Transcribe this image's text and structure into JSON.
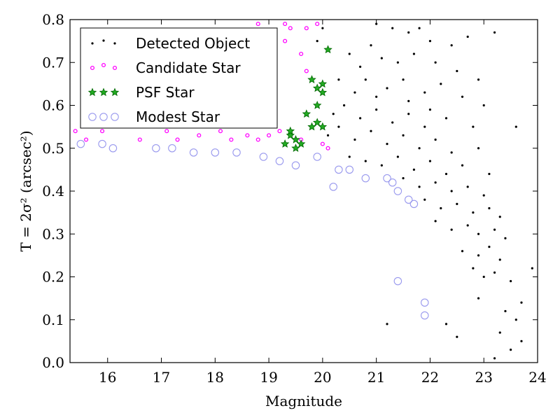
{
  "chart_data": {
    "type": "scatter",
    "xlabel": "Magnitude",
    "ylabel": "T = 2σ² (arcsec²)",
    "xlim": [
      15.3,
      24.0
    ],
    "ylim": [
      0.0,
      0.8
    ],
    "xticks": [
      16,
      17,
      18,
      19,
      20,
      21,
      22,
      23,
      24
    ],
    "yticks": [
      0.0,
      0.1,
      0.2,
      0.3,
      0.4,
      0.5,
      0.6,
      0.7,
      0.8
    ],
    "grid": false,
    "legend_position": "top-left",
    "series": [
      {
        "name": "Detected Object",
        "marker": "dot",
        "color": "#000000",
        "points": [
          [
            21.0,
            0.79
          ],
          [
            21.3,
            0.78
          ],
          [
            21.6,
            0.77
          ],
          [
            21.8,
            0.78
          ],
          [
            22.0,
            0.75
          ],
          [
            22.4,
            0.74
          ],
          [
            22.7,
            0.76
          ],
          [
            23.2,
            0.77
          ],
          [
            20.5,
            0.72
          ],
          [
            20.7,
            0.69
          ],
          [
            20.9,
            0.74
          ],
          [
            21.1,
            0.71
          ],
          [
            21.4,
            0.7
          ],
          [
            21.7,
            0.72
          ],
          [
            22.1,
            0.7
          ],
          [
            22.5,
            0.68
          ],
          [
            22.9,
            0.66
          ],
          [
            20.3,
            0.66
          ],
          [
            20.6,
            0.63
          ],
          [
            20.8,
            0.66
          ],
          [
            21.2,
            0.64
          ],
          [
            21.5,
            0.66
          ],
          [
            21.9,
            0.63
          ],
          [
            22.2,
            0.65
          ],
          [
            22.6,
            0.62
          ],
          [
            23.0,
            0.6
          ],
          [
            20.2,
            0.58
          ],
          [
            20.4,
            0.6
          ],
          [
            20.7,
            0.57
          ],
          [
            21.0,
            0.59
          ],
          [
            21.3,
            0.56
          ],
          [
            21.6,
            0.58
          ],
          [
            21.9,
            0.55
          ],
          [
            22.3,
            0.57
          ],
          [
            22.8,
            0.55
          ],
          [
            23.6,
            0.55
          ],
          [
            20.1,
            0.53
          ],
          [
            20.3,
            0.55
          ],
          [
            20.6,
            0.52
          ],
          [
            20.9,
            0.54
          ],
          [
            21.2,
            0.51
          ],
          [
            21.5,
            0.53
          ],
          [
            21.8,
            0.5
          ],
          [
            22.1,
            0.52
          ],
          [
            22.4,
            0.49
          ],
          [
            22.9,
            0.5
          ],
          [
            20.5,
            0.48
          ],
          [
            20.8,
            0.47
          ],
          [
            21.1,
            0.46
          ],
          [
            21.4,
            0.48
          ],
          [
            21.7,
            0.45
          ],
          [
            22.0,
            0.47
          ],
          [
            22.3,
            0.44
          ],
          [
            22.6,
            0.46
          ],
          [
            23.1,
            0.44
          ],
          [
            21.5,
            0.43
          ],
          [
            21.8,
            0.41
          ],
          [
            22.1,
            0.42
          ],
          [
            22.4,
            0.4
          ],
          [
            22.7,
            0.41
          ],
          [
            23.0,
            0.39
          ],
          [
            21.2,
            0.09
          ],
          [
            21.9,
            0.38
          ],
          [
            22.2,
            0.36
          ],
          [
            22.5,
            0.37
          ],
          [
            22.8,
            0.35
          ],
          [
            23.1,
            0.36
          ],
          [
            23.3,
            0.34
          ],
          [
            22.1,
            0.33
          ],
          [
            22.4,
            0.31
          ],
          [
            22.7,
            0.32
          ],
          [
            22.9,
            0.3
          ],
          [
            23.2,
            0.31
          ],
          [
            23.4,
            0.29
          ],
          [
            22.6,
            0.26
          ],
          [
            22.9,
            0.25
          ],
          [
            23.1,
            0.27
          ],
          [
            23.3,
            0.24
          ],
          [
            22.8,
            0.22
          ],
          [
            23.0,
            0.2
          ],
          [
            23.2,
            0.21
          ],
          [
            23.5,
            0.19
          ],
          [
            23.9,
            0.22
          ],
          [
            23.7,
            0.14
          ],
          [
            23.4,
            0.12
          ],
          [
            23.6,
            0.1
          ],
          [
            23.3,
            0.07
          ],
          [
            23.5,
            0.03
          ],
          [
            23.7,
            0.05
          ],
          [
            23.2,
            0.01
          ],
          [
            22.3,
            0.09
          ],
          [
            22.5,
            0.06
          ],
          [
            22.9,
            0.15
          ],
          [
            20.0,
            0.78
          ],
          [
            19.9,
            0.75
          ],
          [
            21.0,
            0.62
          ],
          [
            22.0,
            0.59
          ],
          [
            21.6,
            0.61
          ]
        ]
      },
      {
        "name": "Candidate Star",
        "marker": "ring-small",
        "color": "#ff00ff",
        "points": [
          [
            15.4,
            0.54
          ],
          [
            15.6,
            0.52
          ],
          [
            15.9,
            0.54
          ],
          [
            16.6,
            0.52
          ],
          [
            17.1,
            0.54
          ],
          [
            17.3,
            0.52
          ],
          [
            17.7,
            0.53
          ],
          [
            18.1,
            0.54
          ],
          [
            18.3,
            0.52
          ],
          [
            18.6,
            0.53
          ],
          [
            18.8,
            0.52
          ],
          [
            19.0,
            0.53
          ],
          [
            19.2,
            0.54
          ],
          [
            19.6,
            0.52
          ],
          [
            20.0,
            0.51
          ],
          [
            20.1,
            0.5
          ],
          [
            18.6,
            0.73
          ],
          [
            18.8,
            0.79
          ],
          [
            19.1,
            0.77
          ],
          [
            19.3,
            0.75
          ],
          [
            19.4,
            0.78
          ],
          [
            19.6,
            0.72
          ],
          [
            19.7,
            0.78
          ],
          [
            19.9,
            0.79
          ],
          [
            19.7,
            0.68
          ],
          [
            19.3,
            0.79
          ]
        ]
      },
      {
        "name": "PSF Star",
        "marker": "star",
        "color": "#00aa00",
        "points": [
          [
            19.3,
            0.51
          ],
          [
            19.4,
            0.53
          ],
          [
            19.5,
            0.52
          ],
          [
            19.6,
            0.51
          ],
          [
            19.7,
            0.58
          ],
          [
            19.8,
            0.55
          ],
          [
            19.9,
            0.6
          ],
          [
            19.9,
            0.64
          ],
          [
            20.0,
            0.63
          ],
          [
            20.0,
            0.65
          ],
          [
            20.1,
            0.73
          ],
          [
            19.8,
            0.66
          ],
          [
            19.9,
            0.56
          ],
          [
            19.4,
            0.54
          ],
          [
            20.0,
            0.55
          ],
          [
            19.5,
            0.5
          ]
        ]
      },
      {
        "name": "Modest Star",
        "marker": "circle-large",
        "color": "#9999ee",
        "points": [
          [
            15.5,
            0.51
          ],
          [
            15.9,
            0.51
          ],
          [
            16.1,
            0.5
          ],
          [
            16.9,
            0.5
          ],
          [
            17.2,
            0.5
          ],
          [
            17.6,
            0.49
          ],
          [
            18.0,
            0.49
          ],
          [
            18.4,
            0.49
          ],
          [
            18.9,
            0.48
          ],
          [
            19.2,
            0.47
          ],
          [
            19.5,
            0.46
          ],
          [
            19.9,
            0.48
          ],
          [
            20.3,
            0.45
          ],
          [
            20.5,
            0.45
          ],
          [
            20.8,
            0.43
          ],
          [
            21.2,
            0.43
          ],
          [
            21.3,
            0.42
          ],
          [
            21.4,
            0.4
          ],
          [
            21.6,
            0.38
          ],
          [
            21.7,
            0.37
          ],
          [
            20.2,
            0.41
          ],
          [
            21.4,
            0.19
          ],
          [
            21.9,
            0.14
          ],
          [
            21.9,
            0.11
          ]
        ]
      }
    ]
  }
}
